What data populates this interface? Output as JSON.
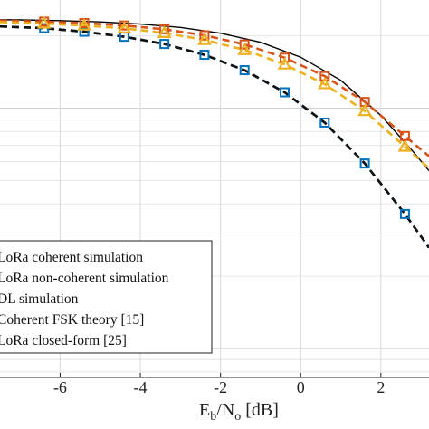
{
  "chart_data": {
    "type": "line",
    "xlabel": {
      "main": "E",
      "sub1": "b",
      "mid": "/N",
      "sub2": "o",
      "unit": " [dB]"
    },
    "ylabel": "",
    "xlim": [
      -7.5,
      3.2
    ],
    "xticks": [
      -6,
      -4,
      -2,
      0,
      2
    ],
    "y_scale": "log",
    "ylim_log10": [
      -2.12,
      -0.55
    ],
    "grid": true,
    "legend_position": "lower-left",
    "series": [
      {
        "name": "LoRa coherent simulation",
        "color": "#0072bd",
        "line_style": "dashed",
        "marker": "square",
        "x": [
          -7.5,
          -6.4,
          -5.4,
          -4.4,
          -3.4,
          -2.4,
          -1.4,
          -0.4,
          0.6,
          1.6,
          2.6,
          3.2
        ],
        "y_log10": [
          -0.66,
          -0.667,
          -0.682,
          -0.703,
          -0.733,
          -0.778,
          -0.842,
          -0.934,
          -1.06,
          -1.23,
          -1.44,
          -1.58
        ]
      },
      {
        "name": "LoRa non-coherent simulation",
        "color": "#d95319",
        "line_style": "dashed",
        "marker": "square",
        "x": [
          -7.5,
          -6.4,
          -5.4,
          -4.4,
          -3.4,
          -2.4,
          -1.4,
          -0.4,
          0.6,
          1.6,
          2.6,
          3.2
        ],
        "y_log10": [
          -0.636,
          -0.64,
          -0.646,
          -0.656,
          -0.672,
          -0.697,
          -0.735,
          -0.79,
          -0.867,
          -0.974,
          -1.116,
          -1.2
        ]
      },
      {
        "name": "DL simulation",
        "color": "#edb120",
        "line_style": "dashed",
        "marker": "triangle",
        "x": [
          -7.5,
          -6.4,
          -5.4,
          -4.4,
          -3.4,
          -2.4,
          -1.4,
          -0.4,
          0.6,
          1.6,
          2.6,
          3.2
        ],
        "y_log10": [
          -0.642,
          -0.648,
          -0.656,
          -0.668,
          -0.687,
          -0.716,
          -0.758,
          -0.818,
          -0.9,
          -1.012,
          -1.16,
          -1.25
        ]
      },
      {
        "name": "Coherent FSK theory [15]",
        "color": "#000000",
        "line_style": "solid",
        "marker": "none",
        "x": [
          -7.5,
          -7,
          -6,
          -5,
          -4,
          -3,
          -2,
          -1,
          0,
          1,
          2,
          2.8,
          3.2
        ],
        "y_log10": [
          -0.632,
          -0.633,
          -0.636,
          -0.641,
          -0.65,
          -0.664,
          -0.688,
          -0.726,
          -0.788,
          -0.884,
          -1.03,
          -1.18,
          -1.26
        ]
      },
      {
        "name": "LoRa closed-form [25]",
        "color": "#111111",
        "line_style": "dashed",
        "marker": "none",
        "x": [
          -7.5,
          -6.4,
          -5.4,
          -4.4,
          -3.4,
          -2.4,
          -1.4,
          -0.4,
          0.6,
          1.6,
          2.6,
          3.2
        ],
        "y_log10": [
          -0.66,
          -0.667,
          -0.682,
          -0.703,
          -0.733,
          -0.778,
          -0.842,
          -0.934,
          -1.06,
          -1.23,
          -1.44,
          -1.58
        ]
      }
    ]
  }
}
